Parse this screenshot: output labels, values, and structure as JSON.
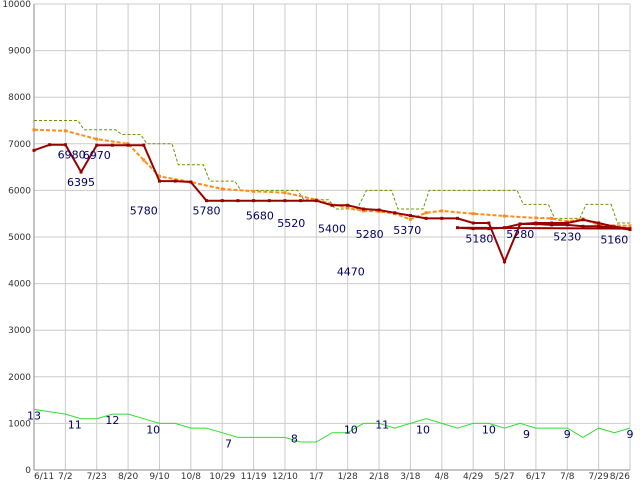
{
  "chart_data": {
    "type": "line",
    "title": "",
    "xlabel": "",
    "ylabel": "",
    "ylim": [
      0,
      10000
    ],
    "y_ticks": [
      "0",
      "1000",
      "2000",
      "3000",
      "4000",
      "5000",
      "6000",
      "7000",
      "8000",
      "9000",
      "10000"
    ],
    "x_ticks": [
      "6/11",
      "7/2",
      "7/23",
      "8/20",
      "9/10",
      "10/8",
      "10/29",
      "11/19",
      "12/10",
      "1/7",
      "1/28",
      "2/18",
      "3/18",
      "4/8",
      "4/29",
      "5/27",
      "6/17",
      "7/8",
      "7/29",
      "8/26"
    ],
    "grid": true,
    "colors": {
      "price": "#990000",
      "average": "#ff8c1a",
      "max": "#669900",
      "count": "#33dd33",
      "grid": "#cccccc",
      "axis": "#888888",
      "data_label": "#000066"
    },
    "series": [
      {
        "name": "",
        "key": "price",
        "style": "solid-markers",
        "x": [
          0,
          0.5,
          1,
          1.5,
          2,
          2.5,
          3,
          3.5,
          4,
          4.5,
          5,
          5.5,
          6,
          6.5,
          7,
          7.5,
          8,
          8.5,
          9,
          9.5,
          10,
          10.5,
          11,
          11.5,
          12,
          12.5,
          13,
          13.5,
          14,
          14.5,
          15,
          15.5,
          16,
          16.5,
          17,
          17.5,
          18,
          18.5,
          19
        ],
        "values": [
          6860,
          6980,
          6980,
          6395,
          6970,
          6970,
          6970,
          6970,
          6200,
          6200,
          6180,
          5780,
          5780,
          5780,
          5780,
          5780,
          5780,
          5780,
          5780,
          5680,
          5680,
          5600,
          5580,
          5520,
          5460,
          5400,
          5400,
          5400,
          5300,
          5300,
          4470,
          5280,
          5300,
          5300,
          5300,
          5370,
          5300,
          5220,
          5180
        ]
      }
    ],
    "series_tail": {
      "x": [
        13.5,
        14,
        14.5,
        15,
        15.5,
        16,
        16.5,
        17,
        17.5,
        18,
        18.5,
        19
      ],
      "values": [
        5200,
        5180,
        5180,
        5200,
        5280,
        5280,
        5260,
        5260,
        5230,
        5230,
        5200,
        5160
      ]
    },
    "average_series": {
      "x": [
        0,
        1,
        2,
        3,
        3.5,
        4,
        5,
        6,
        7,
        8,
        9,
        10,
        10.5,
        11,
        11.5,
        12,
        12.5,
        13,
        14,
        15,
        16,
        16.5,
        17,
        17.5,
        18,
        19
      ],
      "values": [
        7300,
        7280,
        7100,
        7000,
        6650,
        6300,
        6180,
        6030,
        5980,
        5950,
        5800,
        5620,
        5560,
        5550,
        5500,
        5380,
        5520,
        5560,
        5500,
        5450,
        5410,
        5400,
        5330,
        5390,
        5260,
        5240
      ]
    },
    "max_series": {
      "x": [
        0,
        1.4,
        1.6,
        2.6,
        2.8,
        3.4,
        3.6,
        4.4,
        4.6,
        5.4,
        5.6,
        6.4,
        6.6,
        8.4,
        8.6,
        9.4,
        9.6,
        10.3,
        10.6,
        11.4,
        11.6,
        12.4,
        12.6,
        15.4,
        15.6,
        16.4,
        16.6,
        17.4,
        17.6,
        18.4,
        18.6,
        19
      ],
      "values": [
        7500,
        7500,
        7300,
        7300,
        7200,
        7200,
        7000,
        7000,
        6550,
        6550,
        6200,
        6200,
        6000,
        6000,
        5800,
        5800,
        5600,
        5600,
        6000,
        6000,
        5600,
        5600,
        6000,
        6000,
        5700,
        5700,
        5400,
        5400,
        5700,
        5700,
        5300,
        5300
      ]
    },
    "count_series": {
      "x": [
        0,
        1,
        1.5,
        2,
        2.5,
        3,
        3.5,
        4,
        4.5,
        5,
        5.5,
        6,
        6.5,
        7,
        7.5,
        8,
        8.5,
        9,
        9.5,
        10,
        10.5,
        11,
        11.5,
        12,
        12.5,
        13,
        13.5,
        14,
        14.5,
        15,
        15.5,
        16,
        16.5,
        17,
        17.5,
        18,
        18.5,
        19
      ],
      "values": [
        13,
        12,
        11,
        11,
        12,
        12,
        11,
        10,
        10,
        9,
        9,
        8,
        7,
        7,
        7,
        7,
        6,
        6,
        8,
        8,
        10,
        10,
        9,
        10,
        11,
        10,
        9,
        10,
        10,
        9,
        10,
        9,
        9,
        9,
        7,
        9,
        8,
        9
      ]
    },
    "data_labels": [
      {
        "x": 0,
        "value": 13,
        "series": "count",
        "text": "13"
      },
      {
        "x": 1.2,
        "value": 6980,
        "series": "price",
        "text": "6980"
      },
      {
        "x": 1.5,
        "value": 6395,
        "series": "price",
        "text": "6395"
      },
      {
        "x": 1.3,
        "value": 11,
        "series": "count",
        "text": "11"
      },
      {
        "x": 2.0,
        "value": 6970,
        "series": "price",
        "text": "6970"
      },
      {
        "x": 2.5,
        "value": 12,
        "series": "count",
        "text": "12"
      },
      {
        "x": 3.5,
        "value": 5780,
        "series": "price",
        "text": "5780"
      },
      {
        "x": 3.8,
        "value": 10,
        "series": "count",
        "text": "10"
      },
      {
        "x": 5.5,
        "value": 5780,
        "series": "price",
        "text": "5780"
      },
      {
        "x": 6.2,
        "value": 7,
        "series": "count",
        "text": "7"
      },
      {
        "x": 7.2,
        "value": 5680,
        "series": "price",
        "text": "5680"
      },
      {
        "x": 8.2,
        "value": 5520,
        "series": "price",
        "text": "5520"
      },
      {
        "x": 8.3,
        "value": 8,
        "series": "count",
        "text": "8"
      },
      {
        "x": 9.5,
        "value": 5400,
        "series": "price",
        "text": "5400"
      },
      {
        "x": 10.1,
        "value": 10,
        "series": "count",
        "text": "10"
      },
      {
        "x": 10.1,
        "value": 4470,
        "series": "price",
        "text": "4470"
      },
      {
        "x": 10.7,
        "value": 5280,
        "series": "price",
        "text": "5280"
      },
      {
        "x": 11.1,
        "value": 11,
        "series": "count",
        "text": "11"
      },
      {
        "x": 11.9,
        "value": 5370,
        "series": "price",
        "text": "5370"
      },
      {
        "x": 12.4,
        "value": 10,
        "series": "count",
        "text": "10"
      },
      {
        "x": 14.2,
        "value": 5180,
        "series": "price",
        "text": "5180"
      },
      {
        "x": 14.5,
        "value": 10,
        "series": "count",
        "text": "10"
      },
      {
        "x": 15.5,
        "value": 5280,
        "series": "price",
        "text": "5280"
      },
      {
        "x": 15.7,
        "value": 9,
        "series": "count",
        "text": "9"
      },
      {
        "x": 17.0,
        "value": 5230,
        "series": "price",
        "text": "5230"
      },
      {
        "x": 17.0,
        "value": 9,
        "series": "count",
        "text": "9"
      },
      {
        "x": 18.5,
        "value": 5160,
        "series": "price",
        "text": "5160"
      },
      {
        "x": 19.0,
        "value": 9,
        "series": "count",
        "text": "9"
      }
    ]
  }
}
